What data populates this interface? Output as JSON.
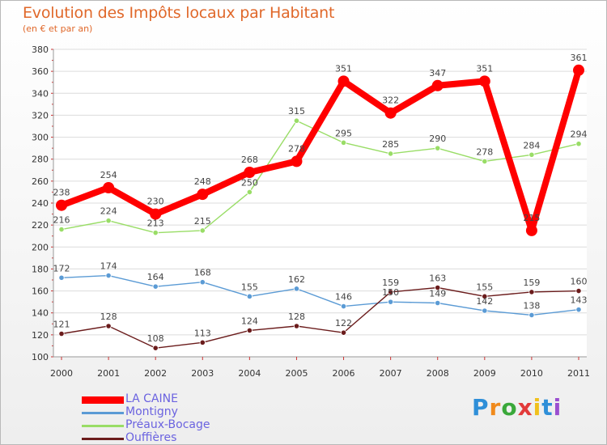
{
  "title": "Evolution des Impôts locaux par Habitant",
  "subtitle": "(en € et par an)",
  "logo": "Proxiti",
  "chart_data": {
    "type": "line",
    "title": "Evolution des Impôts locaux par Habitant",
    "subtitle": "(en € et par an)",
    "xlabel": "",
    "ylabel": "",
    "ylim": [
      100,
      380
    ],
    "ytick_step": 20,
    "grid": "horizontal",
    "legend_position": "bottom-left",
    "categories": [
      "2000",
      "2001",
      "2002",
      "2003",
      "2004",
      "2005",
      "2006",
      "2007",
      "2008",
      "2009",
      "2010",
      "2011"
    ],
    "series": [
      {
        "name": "LA CAINE",
        "color": "#ff0000",
        "emphasis": "thick",
        "values": [
          238,
          254,
          230,
          248,
          268,
          278,
          351,
          322,
          347,
          351,
          215,
          361
        ]
      },
      {
        "name": "Montigny",
        "color": "#5b9bd5",
        "values": [
          172,
          174,
          164,
          168,
          155,
          162,
          146,
          150,
          149,
          142,
          138,
          143
        ]
      },
      {
        "name": "Préaux-Bocage",
        "color": "#99dd66",
        "values": [
          216,
          224,
          213,
          215,
          250,
          315,
          295,
          285,
          290,
          278,
          284,
          294
        ]
      },
      {
        "name": "Ouffières",
        "color": "#6b1c1c",
        "values": [
          121,
          128,
          108,
          113,
          124,
          128,
          122,
          159,
          163,
          155,
          159,
          160
        ]
      }
    ]
  }
}
